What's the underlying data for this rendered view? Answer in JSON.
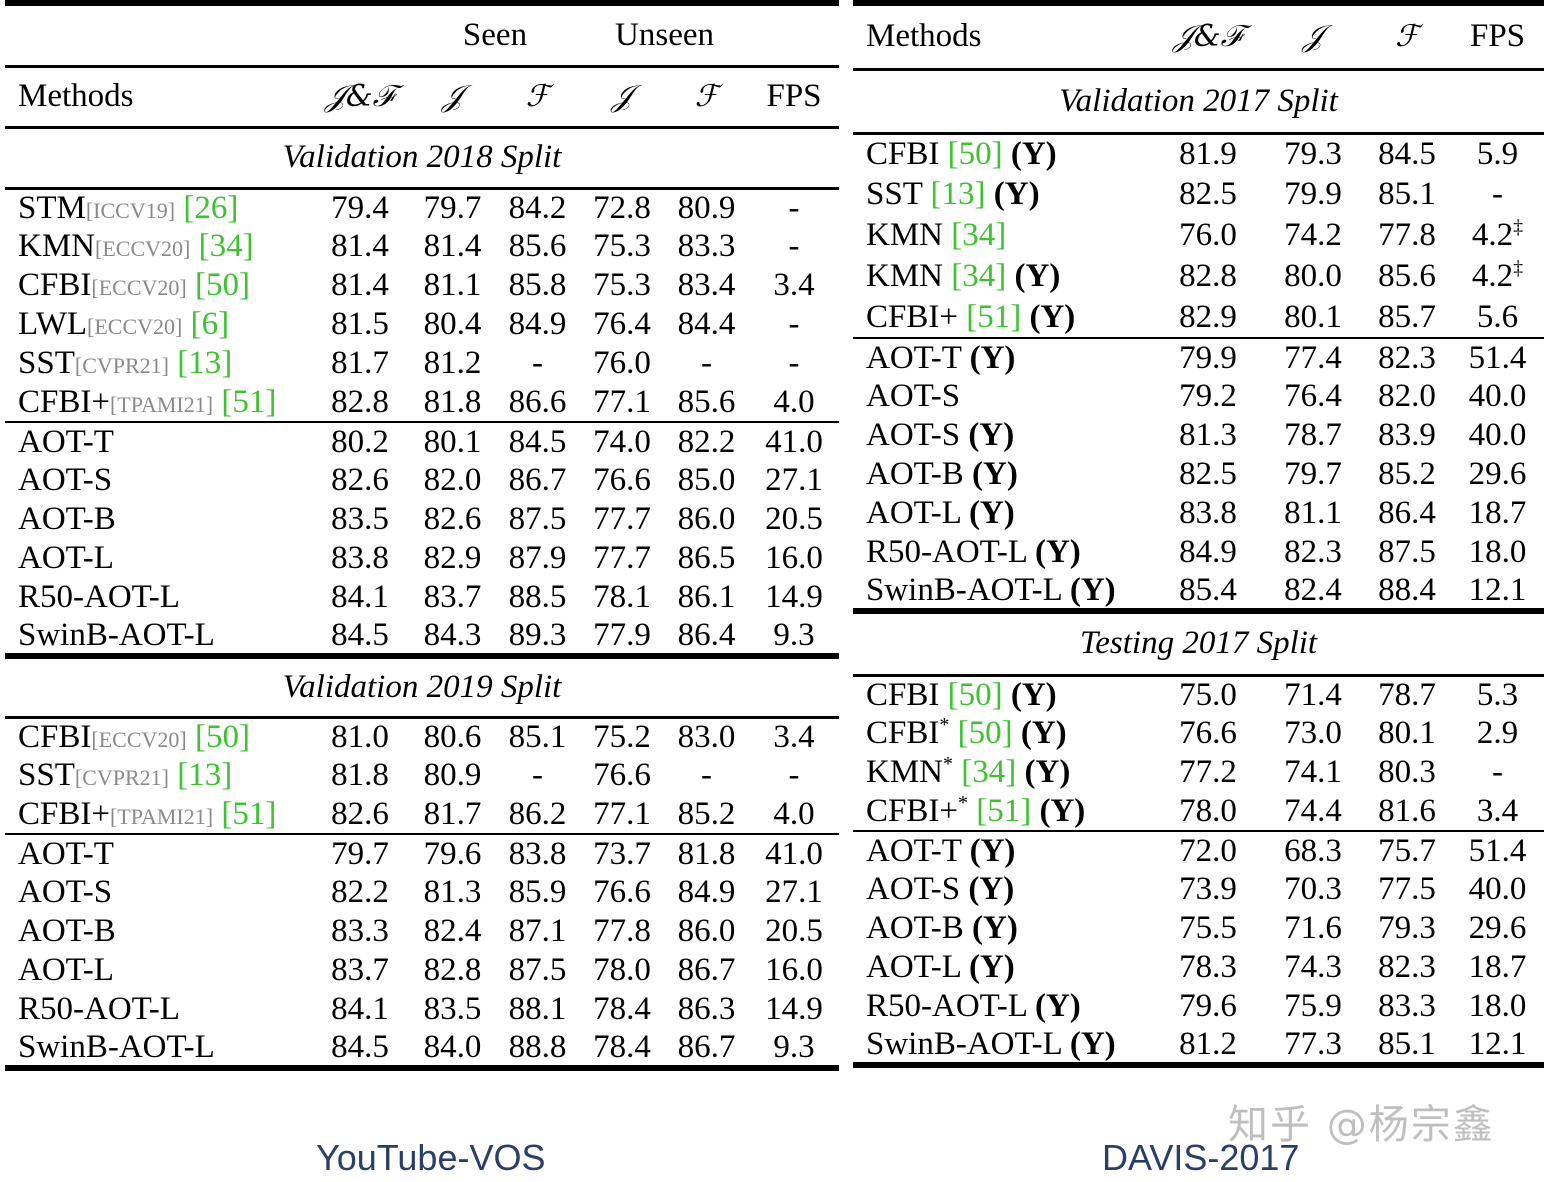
{
  "left": {
    "caption": "YouTube-VOS",
    "group_headers": {
      "seen": "Seen",
      "unseen": "Unseen"
    },
    "headers": [
      "Methods",
      "𝒥&ℱ",
      "𝒥",
      "ℱ",
      "𝒥",
      "ℱ",
      "FPS"
    ],
    "sections": [
      {
        "title": "Validation 2018 Split",
        "baselines": [
          {
            "method": "STM",
            "venue": "[ICCV19]",
            "cite": "[26]",
            "values": [
              "79.4",
              "79.7",
              "84.2",
              "72.8",
              "80.9",
              "-"
            ]
          },
          {
            "method": "KMN",
            "venue": "[ECCV20]",
            "cite": "[34]",
            "values": [
              "81.4",
              "81.4",
              "85.6",
              "75.3",
              "83.3",
              "-"
            ]
          },
          {
            "method": "CFBI",
            "venue": "[ECCV20]",
            "cite": "[50]",
            "values": [
              "81.4",
              "81.1",
              "85.8",
              "75.3",
              "83.4",
              "3.4"
            ]
          },
          {
            "method": "LWL",
            "venue": "[ECCV20]",
            "cite": "[6]",
            "values": [
              "81.5",
              "80.4",
              "84.9",
              "76.4",
              "84.4",
              "-"
            ]
          },
          {
            "method": "SST",
            "venue": "[CVPR21]",
            "cite": "[13]",
            "values": [
              "81.7",
              "81.2",
              "-",
              "76.0",
              "-",
              "-"
            ]
          },
          {
            "method": "CFBI+",
            "venue": "[TPAMI21]",
            "cite": "[51]",
            "values": [
              "82.8",
              "81.8",
              "86.6",
              "77.1",
              "85.6",
              "4.0"
            ]
          }
        ],
        "ours": [
          {
            "method": "AOT-T",
            "values": [
              "80.2",
              "80.1",
              "84.5",
              "74.0",
              "82.2",
              "41.0"
            ],
            "bold": [
              5
            ]
          },
          {
            "method": "AOT-S",
            "values": [
              "82.6",
              "82.0",
              "86.7",
              "76.6",
              "85.0",
              "27.1"
            ],
            "bold": []
          },
          {
            "method": "AOT-B",
            "values": [
              "83.5",
              "82.6",
              "87.5",
              "77.7",
              "86.0",
              "20.5"
            ],
            "bold": []
          },
          {
            "method": "AOT-L",
            "values": [
              "83.8",
              "82.9",
              "87.9",
              "77.7",
              "86.5",
              "16.0"
            ],
            "bold": [
              4
            ]
          },
          {
            "method": "R50-AOT-L",
            "values": [
              "84.1",
              "83.7",
              "88.5",
              "78.1",
              "86.1",
              "14.9"
            ],
            "bold": [
              3
            ]
          },
          {
            "method": "SwinB-AOT-L",
            "values": [
              "84.5",
              "84.3",
              "89.3",
              "77.9",
              "86.4",
              "9.3"
            ],
            "bold": [
              0,
              1,
              2
            ]
          }
        ]
      },
      {
        "title": "Validation 2019 Split",
        "baselines": [
          {
            "method": "CFBI",
            "venue": "[ECCV20]",
            "cite": "[50]",
            "values": [
              "81.0",
              "80.6",
              "85.1",
              "75.2",
              "83.0",
              "3.4"
            ]
          },
          {
            "method": "SST",
            "venue": "[CVPR21]",
            "cite": "[13]",
            "values": [
              "81.8",
              "80.9",
              "-",
              "76.6",
              "-",
              "-"
            ]
          },
          {
            "method": "CFBI+",
            "venue": "[TPAMI21]",
            "cite": "[51]",
            "values": [
              "82.6",
              "81.7",
              "86.2",
              "77.1",
              "85.2",
              "4.0"
            ]
          }
        ],
        "ours": [
          {
            "method": "AOT-T",
            "values": [
              "79.7",
              "79.6",
              "83.8",
              "73.7",
              "81.8",
              "41.0"
            ],
            "bold": [
              5
            ]
          },
          {
            "method": "AOT-S",
            "values": [
              "82.2",
              "81.3",
              "85.9",
              "76.6",
              "84.9",
              "27.1"
            ],
            "bold": []
          },
          {
            "method": "AOT-B",
            "values": [
              "83.3",
              "82.4",
              "87.1",
              "77.8",
              "86.0",
              "20.5"
            ],
            "bold": []
          },
          {
            "method": "AOT-L",
            "values": [
              "83.7",
              "82.8",
              "87.5",
              "78.0",
              "86.7",
              "16.0"
            ],
            "bold": [
              4
            ]
          },
          {
            "method": "R50-AOT-L",
            "values": [
              "84.1",
              "83.5",
              "88.1",
              "78.4",
              "86.3",
              "14.9"
            ],
            "bold": [
              3
            ]
          },
          {
            "method": "SwinB-AOT-L",
            "values": [
              "84.5",
              "84.0",
              "88.8",
              "78.4",
              "86.7",
              "9.3"
            ],
            "bold": [
              0,
              1,
              2,
              3,
              4
            ]
          }
        ]
      }
    ]
  },
  "right": {
    "caption": "DAVIS-2017",
    "headers": [
      "Methods",
      "𝒥&ℱ",
      "𝒥",
      "ℱ",
      "FPS"
    ],
    "sections": [
      {
        "title": "Validation 2017 Split",
        "baselines": [
          {
            "method": "CFBI",
            "cite": "[50]",
            "suffix": "(Y)",
            "values": [
              "81.9",
              "79.3",
              "84.5",
              "5.9"
            ],
            "fps_sup": ""
          },
          {
            "method": "SST",
            "cite": "[13]",
            "suffix": "(Y)",
            "values": [
              "82.5",
              "79.9",
              "85.1",
              "-"
            ],
            "fps_sup": ""
          },
          {
            "method": "KMN",
            "cite": "[34]",
            "suffix": "",
            "values": [
              "76.0",
              "74.2",
              "77.8",
              "4.2"
            ],
            "fps_sup": "‡"
          },
          {
            "method": "KMN",
            "cite": "[34]",
            "suffix": "(Y)",
            "values": [
              "82.8",
              "80.0",
              "85.6",
              "4.2"
            ],
            "fps_sup": "‡"
          },
          {
            "method": "CFBI+",
            "cite": "[51]",
            "suffix": "(Y)",
            "values": [
              "82.9",
              "80.1",
              "85.7",
              "5.6"
            ],
            "fps_sup": ""
          }
        ],
        "ours": [
          {
            "method": "AOT-T",
            "suffix": "(Y)",
            "values": [
              "79.9",
              "77.4",
              "82.3",
              "51.4"
            ],
            "bold": [
              3
            ]
          },
          {
            "method": "AOT-S",
            "suffix": "",
            "values": [
              "79.2",
              "76.4",
              "82.0",
              "40.0"
            ],
            "bold": []
          },
          {
            "method": "AOT-S",
            "suffix": "(Y)",
            "values": [
              "81.3",
              "78.7",
              "83.9",
              "40.0"
            ],
            "bold": []
          },
          {
            "method": "AOT-B",
            "suffix": "(Y)",
            "values": [
              "82.5",
              "79.7",
              "85.2",
              "29.6"
            ],
            "bold": []
          },
          {
            "method": "AOT-L",
            "suffix": "(Y)",
            "values": [
              "83.8",
              "81.1",
              "86.4",
              "18.7"
            ],
            "bold": []
          },
          {
            "method": "R50-AOT-L",
            "suffix": "(Y)",
            "values": [
              "84.9",
              "82.3",
              "87.5",
              "18.0"
            ],
            "bold": []
          },
          {
            "method": "SwinB-AOT-L",
            "suffix": "(Y)",
            "values": [
              "85.4",
              "82.4",
              "88.4",
              "12.1"
            ],
            "bold": [
              0,
              1,
              2
            ]
          }
        ]
      },
      {
        "title": "Testing 2017 Split",
        "baselines": [
          {
            "method": "CFBI",
            "star": "",
            "cite": "[50]",
            "suffix": "(Y)",
            "values": [
              "75.0",
              "71.4",
              "78.7",
              "5.3"
            ],
            "fps_sup": ""
          },
          {
            "method": "CFBI",
            "star": "*",
            "cite": "[50]",
            "suffix": "(Y)",
            "values": [
              "76.6",
              "73.0",
              "80.1",
              "2.9"
            ],
            "fps_sup": ""
          },
          {
            "method": "KMN",
            "star": "*",
            "cite": "[34]",
            "suffix": "(Y)",
            "values": [
              "77.2",
              "74.1",
              "80.3",
              "-"
            ],
            "fps_sup": ""
          },
          {
            "method": "CFBI+",
            "star": "*",
            "cite": "[51]",
            "suffix": "(Y)",
            "values": [
              "78.0",
              "74.4",
              "81.6",
              "3.4"
            ],
            "fps_sup": ""
          }
        ],
        "ours": [
          {
            "method": "AOT-T",
            "suffix": "(Y)",
            "values": [
              "72.0",
              "68.3",
              "75.7",
              "51.4"
            ],
            "bold": [
              3
            ]
          },
          {
            "method": "AOT-S",
            "suffix": "(Y)",
            "values": [
              "73.9",
              "70.3",
              "77.5",
              "40.0"
            ],
            "bold": []
          },
          {
            "method": "AOT-B",
            "suffix": "(Y)",
            "values": [
              "75.5",
              "71.6",
              "79.3",
              "29.6"
            ],
            "bold": []
          },
          {
            "method": "AOT-L",
            "suffix": "(Y)",
            "values": [
              "78.3",
              "74.3",
              "82.3",
              "18.7"
            ],
            "bold": []
          },
          {
            "method": "R50-AOT-L",
            "suffix": "(Y)",
            "values": [
              "79.6",
              "75.9",
              "83.3",
              "18.0"
            ],
            "bold": []
          },
          {
            "method": "SwinB-AOT-L",
            "suffix": "(Y)",
            "values": [
              "81.2",
              "77.3",
              "85.1",
              "12.1"
            ],
            "bold": [
              0,
              1,
              2
            ]
          }
        ]
      }
    ]
  },
  "watermark": "知乎 @杨宗鑫"
}
